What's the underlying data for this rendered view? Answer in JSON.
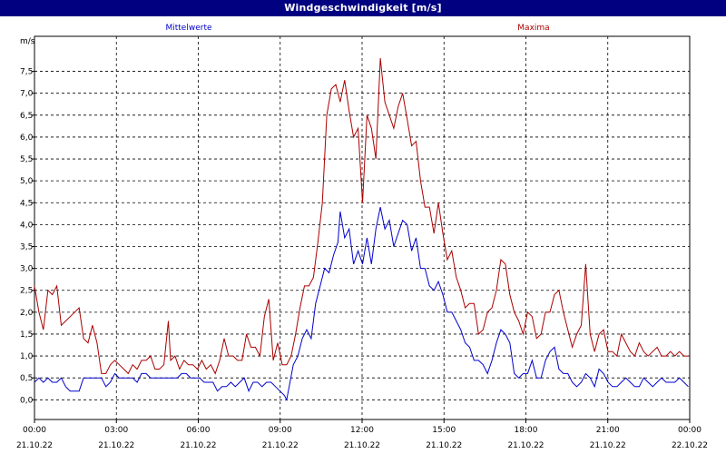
{
  "window": {
    "title": "Windgeschwindigkeit [m/s]"
  },
  "colors": {
    "titlebar": "#000080",
    "mean": "#0000cc",
    "max": "#aa0000",
    "grid": "#000000"
  },
  "chart_data": {
    "type": "line",
    "title": "Windgeschwindigkeit [m/s]",
    "ylabel": "m/s",
    "ylim": [
      -0.45,
      8.3
    ],
    "y_ticks": [
      "0,0",
      "0,5",
      "1,0",
      "1,5",
      "2,0",
      "2,5",
      "3,0",
      "3,5",
      "4,0",
      "4,5",
      "5,0",
      "5,5",
      "6,0",
      "6,5",
      "7,0",
      "7,5"
    ],
    "y_tick_values": [
      0,
      0.5,
      1,
      1.5,
      2,
      2.5,
      3,
      3.5,
      4,
      4.5,
      5,
      5.5,
      6,
      6.5,
      7,
      7.5
    ],
    "x_ticks": [
      {
        "time": "00:00",
        "date": "21.10.22"
      },
      {
        "time": "03:00",
        "date": "21.10.22"
      },
      {
        "time": "06:00",
        "date": "21.10.22"
      },
      {
        "time": "09:00",
        "date": "21.10.22"
      },
      {
        "time": "12:00",
        "date": "21.10.22"
      },
      {
        "time": "15:00",
        "date": "21.10.22"
      },
      {
        "time": "18:00",
        "date": "21.10.22"
      },
      {
        "time": "21:00",
        "date": "21.10.22"
      },
      {
        "time": "00:00",
        "date": "22.10.22"
      }
    ],
    "grid": true,
    "series": [
      {
        "name": "Mittelwerte",
        "color": "#0000cc",
        "points": [
          [
            0,
            0.4
          ],
          [
            0.2,
            0.5
          ],
          [
            0.4,
            0.4
          ],
          [
            0.6,
            0.5
          ],
          [
            0.8,
            0.4
          ],
          [
            1,
            0.4
          ],
          [
            1.2,
            0.5
          ],
          [
            1.4,
            0.3
          ],
          [
            1.6,
            0.2
          ],
          [
            1.8,
            0.2
          ],
          [
            2,
            0.2
          ],
          [
            2.2,
            0.5
          ],
          [
            2.4,
            0.5
          ],
          [
            2.6,
            0.5
          ],
          [
            2.8,
            0.5
          ],
          [
            3,
            0.5
          ],
          [
            3.2,
            0.3
          ],
          [
            3.4,
            0.4
          ],
          [
            3.6,
            0.6
          ],
          [
            3.8,
            0.5
          ],
          [
            4,
            0.5
          ],
          [
            4.2,
            0.5
          ],
          [
            4.4,
            0.5
          ],
          [
            4.6,
            0.4
          ],
          [
            4.8,
            0.6
          ],
          [
            5,
            0.6
          ],
          [
            5.2,
            0.5
          ],
          [
            5.4,
            0.5
          ],
          [
            5.6,
            0.5
          ],
          [
            5.8,
            0.5
          ],
          [
            6,
            0.5
          ],
          [
            6.2,
            0.5
          ],
          [
            6.4,
            0.5
          ],
          [
            6.6,
            0.6
          ],
          [
            6.8,
            0.6
          ],
          [
            7,
            0.5
          ],
          [
            7.2,
            0.5
          ],
          [
            7.4,
            0.5
          ],
          [
            7.6,
            0.4
          ],
          [
            7.8,
            0.4
          ],
          [
            8,
            0.4
          ],
          [
            8.2,
            0.2
          ],
          [
            8.4,
            0.3
          ],
          [
            8.6,
            0.3
          ],
          [
            8.8,
            0.4
          ],
          [
            9,
            0.3
          ],
          [
            9.2,
            0.4
          ],
          [
            9.4,
            0.5
          ],
          [
            9.6,
            0.2
          ],
          [
            9.8,
            0.4
          ],
          [
            10,
            0.4
          ],
          [
            10.2,
            0.3
          ],
          [
            10.4,
            0.4
          ],
          [
            10.6,
            0.4
          ],
          [
            10.8,
            0.3
          ],
          [
            11,
            0.2
          ],
          [
            11.2,
            0.1
          ],
          [
            11.3,
            0.0
          ],
          [
            11.6,
            0.8
          ],
          [
            11.8,
            1.0
          ],
          [
            12,
            1.4
          ],
          [
            12.2,
            1.6
          ],
          [
            12.4,
            1.4
          ],
          [
            12.6,
            2.2
          ],
          [
            12.8,
            2.6
          ],
          [
            13,
            3.0
          ],
          [
            13.2,
            2.9
          ],
          [
            13.4,
            3.3
          ],
          [
            13.6,
            3.6
          ],
          [
            13.7,
            4.3
          ],
          [
            13.9,
            3.7
          ],
          [
            14.1,
            3.9
          ],
          [
            14.3,
            3.1
          ],
          [
            14.5,
            3.4
          ],
          [
            14.7,
            3.1
          ],
          [
            14.9,
            3.7
          ],
          [
            15.1,
            3.1
          ],
          [
            15.3,
            3.9
          ],
          [
            15.5,
            4.4
          ],
          [
            15.7,
            3.9
          ],
          [
            15.9,
            4.1
          ],
          [
            16.1,
            3.5
          ],
          [
            16.3,
            3.8
          ],
          [
            16.5,
            4.1
          ],
          [
            16.7,
            4.0
          ],
          [
            16.9,
            3.4
          ],
          [
            17.1,
            3.7
          ],
          [
            17.3,
            3.0
          ],
          [
            17.5,
            3.0
          ],
          [
            17.7,
            2.6
          ],
          [
            17.9,
            2.5
          ],
          [
            18.1,
            2.7
          ],
          [
            18.3,
            2.4
          ],
          [
            18.5,
            2.0
          ],
          [
            18.7,
            2.0
          ],
          [
            18.9,
            1.8
          ],
          [
            19.1,
            1.6
          ],
          [
            19.3,
            1.3
          ],
          [
            19.5,
            1.2
          ],
          [
            19.7,
            0.9
          ],
          [
            19.9,
            0.9
          ],
          [
            20.1,
            0.8
          ],
          [
            20.3,
            0.6
          ],
          [
            20.5,
            0.9
          ],
          [
            20.7,
            1.3
          ],
          [
            20.9,
            1.6
          ],
          [
            21.1,
            1.5
          ],
          [
            21.3,
            1.3
          ],
          [
            21.5,
            0.6
          ],
          [
            21.7,
            0.5
          ],
          [
            21.9,
            0.6
          ],
          [
            22.1,
            0.6
          ],
          [
            22.3,
            0.9
          ],
          [
            22.5,
            0.5
          ],
          [
            22.7,
            0.5
          ],
          [
            22.9,
            0.9
          ],
          [
            23.1,
            1.1
          ],
          [
            23.3,
            1.2
          ],
          [
            23.5,
            0.7
          ],
          [
            23.7,
            0.6
          ],
          [
            23.9,
            0.6
          ],
          [
            24.1,
            0.4
          ],
          [
            24.3,
            0.3
          ],
          [
            24.5,
            0.4
          ],
          [
            24.7,
            0.6
          ],
          [
            24.9,
            0.5
          ],
          [
            25.1,
            0.3
          ],
          [
            25.3,
            0.7
          ],
          [
            25.5,
            0.6
          ],
          [
            25.7,
            0.4
          ],
          [
            25.9,
            0.3
          ],
          [
            26.1,
            0.3
          ],
          [
            26.3,
            0.4
          ],
          [
            26.5,
            0.5
          ],
          [
            26.7,
            0.4
          ],
          [
            26.9,
            0.3
          ],
          [
            27.1,
            0.3
          ],
          [
            27.3,
            0.5
          ],
          [
            27.5,
            0.4
          ],
          [
            27.7,
            0.3
          ],
          [
            27.9,
            0.4
          ],
          [
            28.1,
            0.5
          ],
          [
            28.3,
            0.4
          ],
          [
            28.5,
            0.4
          ],
          [
            28.7,
            0.4
          ],
          [
            28.9,
            0.5
          ],
          [
            29.1,
            0.4
          ],
          [
            29.3,
            0.3
          ]
        ]
      },
      {
        "name": "Maxima",
        "color": "#aa0000",
        "points": [
          [
            0,
            2.6
          ],
          [
            0.2,
            2.0
          ],
          [
            0.4,
            1.6
          ],
          [
            0.6,
            2.5
          ],
          [
            0.8,
            2.4
          ],
          [
            1.0,
            2.6
          ],
          [
            1.2,
            1.7
          ],
          [
            1.4,
            1.8
          ],
          [
            1.6,
            1.9
          ],
          [
            1.8,
            2.0
          ],
          [
            2.0,
            2.1
          ],
          [
            2.2,
            1.4
          ],
          [
            2.4,
            1.3
          ],
          [
            2.6,
            1.7
          ],
          [
            2.8,
            1.3
          ],
          [
            3.0,
            0.6
          ],
          [
            3.2,
            0.6
          ],
          [
            3.4,
            0.8
          ],
          [
            3.6,
            0.9
          ],
          [
            3.8,
            0.8
          ],
          [
            4.0,
            0.7
          ],
          [
            4.2,
            0.6
          ],
          [
            4.4,
            0.8
          ],
          [
            4.6,
            0.7
          ],
          [
            4.8,
            0.9
          ],
          [
            5.0,
            0.9
          ],
          [
            5.2,
            1.0
          ],
          [
            5.4,
            0.7
          ],
          [
            5.6,
            0.7
          ],
          [
            5.8,
            0.8
          ],
          [
            6.0,
            1.8
          ],
          [
            6.1,
            0.9
          ],
          [
            6.3,
            1.0
          ],
          [
            6.5,
            0.7
          ],
          [
            6.7,
            0.9
          ],
          [
            6.9,
            0.8
          ],
          [
            7.1,
            0.8
          ],
          [
            7.3,
            0.7
          ],
          [
            7.5,
            0.9
          ],
          [
            7.7,
            0.7
          ],
          [
            7.9,
            0.8
          ],
          [
            8.1,
            0.6
          ],
          [
            8.3,
            0.9
          ],
          [
            8.5,
            1.4
          ],
          [
            8.7,
            1.0
          ],
          [
            8.9,
            1.0
          ],
          [
            9.1,
            0.9
          ],
          [
            9.3,
            0.9
          ],
          [
            9.5,
            1.5
          ],
          [
            9.7,
            1.2
          ],
          [
            9.9,
            1.2
          ],
          [
            10.1,
            1.0
          ],
          [
            10.3,
            1.9
          ],
          [
            10.5,
            2.3
          ],
          [
            10.7,
            0.9
          ],
          [
            10.9,
            1.3
          ],
          [
            11.1,
            0.8
          ],
          [
            11.3,
            0.8
          ],
          [
            11.5,
            1.0
          ],
          [
            11.7,
            1.5
          ],
          [
            11.9,
            2.1
          ],
          [
            12.1,
            2.6
          ],
          [
            12.3,
            2.6
          ],
          [
            12.5,
            2.8
          ],
          [
            12.7,
            3.6
          ],
          [
            12.9,
            4.5
          ],
          [
            13.1,
            6.5
          ],
          [
            13.3,
            7.1
          ],
          [
            13.5,
            7.2
          ],
          [
            13.7,
            6.8
          ],
          [
            13.9,
            7.3
          ],
          [
            14.1,
            6.6
          ],
          [
            14.3,
            6.0
          ],
          [
            14.5,
            6.2
          ],
          [
            14.7,
            4.5
          ],
          [
            14.9,
            6.5
          ],
          [
            15.1,
            6.2
          ],
          [
            15.3,
            5.5
          ],
          [
            15.5,
            7.8
          ],
          [
            15.7,
            6.8
          ],
          [
            15.9,
            6.5
          ],
          [
            16.1,
            6.2
          ],
          [
            16.3,
            6.7
          ],
          [
            16.5,
            7.0
          ],
          [
            16.7,
            6.4
          ],
          [
            16.9,
            5.8
          ],
          [
            17.1,
            5.9
          ],
          [
            17.3,
            5.0
          ],
          [
            17.5,
            4.4
          ],
          [
            17.7,
            4.4
          ],
          [
            17.9,
            3.8
          ],
          [
            18.1,
            4.5
          ],
          [
            18.3,
            3.8
          ],
          [
            18.5,
            3.2
          ],
          [
            18.7,
            3.4
          ],
          [
            18.9,
            2.8
          ],
          [
            19.1,
            2.5
          ],
          [
            19.3,
            2.1
          ],
          [
            19.5,
            2.2
          ],
          [
            19.7,
            2.2
          ],
          [
            19.9,
            1.5
          ],
          [
            20.1,
            1.6
          ],
          [
            20.3,
            2.0
          ],
          [
            20.5,
            2.1
          ],
          [
            20.7,
            2.5
          ],
          [
            20.9,
            3.2
          ],
          [
            21.1,
            3.1
          ],
          [
            21.3,
            2.4
          ],
          [
            21.5,
            2.0
          ],
          [
            21.7,
            1.8
          ],
          [
            21.9,
            1.5
          ],
          [
            22.1,
            2.0
          ],
          [
            22.3,
            1.9
          ],
          [
            22.5,
            1.4
          ],
          [
            22.7,
            1.5
          ],
          [
            22.9,
            2.0
          ],
          [
            23.1,
            2.0
          ],
          [
            23.3,
            2.4
          ],
          [
            23.5,
            2.5
          ],
          [
            23.7,
            2.0
          ],
          [
            23.9,
            1.6
          ],
          [
            24.1,
            1.2
          ],
          [
            24.3,
            1.5
          ],
          [
            24.5,
            1.7
          ],
          [
            24.7,
            3.1
          ],
          [
            24.9,
            1.5
          ],
          [
            25.1,
            1.1
          ],
          [
            25.3,
            1.5
          ],
          [
            25.5,
            1.6
          ],
          [
            25.7,
            1.1
          ],
          [
            25.9,
            1.1
          ],
          [
            26.1,
            1.0
          ],
          [
            26.3,
            1.5
          ],
          [
            26.5,
            1.3
          ],
          [
            26.7,
            1.1
          ],
          [
            26.9,
            1.0
          ],
          [
            27.1,
            1.3
          ],
          [
            27.3,
            1.1
          ],
          [
            27.5,
            1.0
          ],
          [
            27.7,
            1.1
          ],
          [
            27.9,
            1.2
          ],
          [
            28.1,
            1.0
          ],
          [
            28.3,
            1.0
          ],
          [
            28.5,
            1.1
          ],
          [
            28.7,
            1.0
          ],
          [
            28.9,
            1.1
          ],
          [
            29.1,
            1.0
          ],
          [
            29.3,
            1.0
          ]
        ]
      }
    ]
  }
}
